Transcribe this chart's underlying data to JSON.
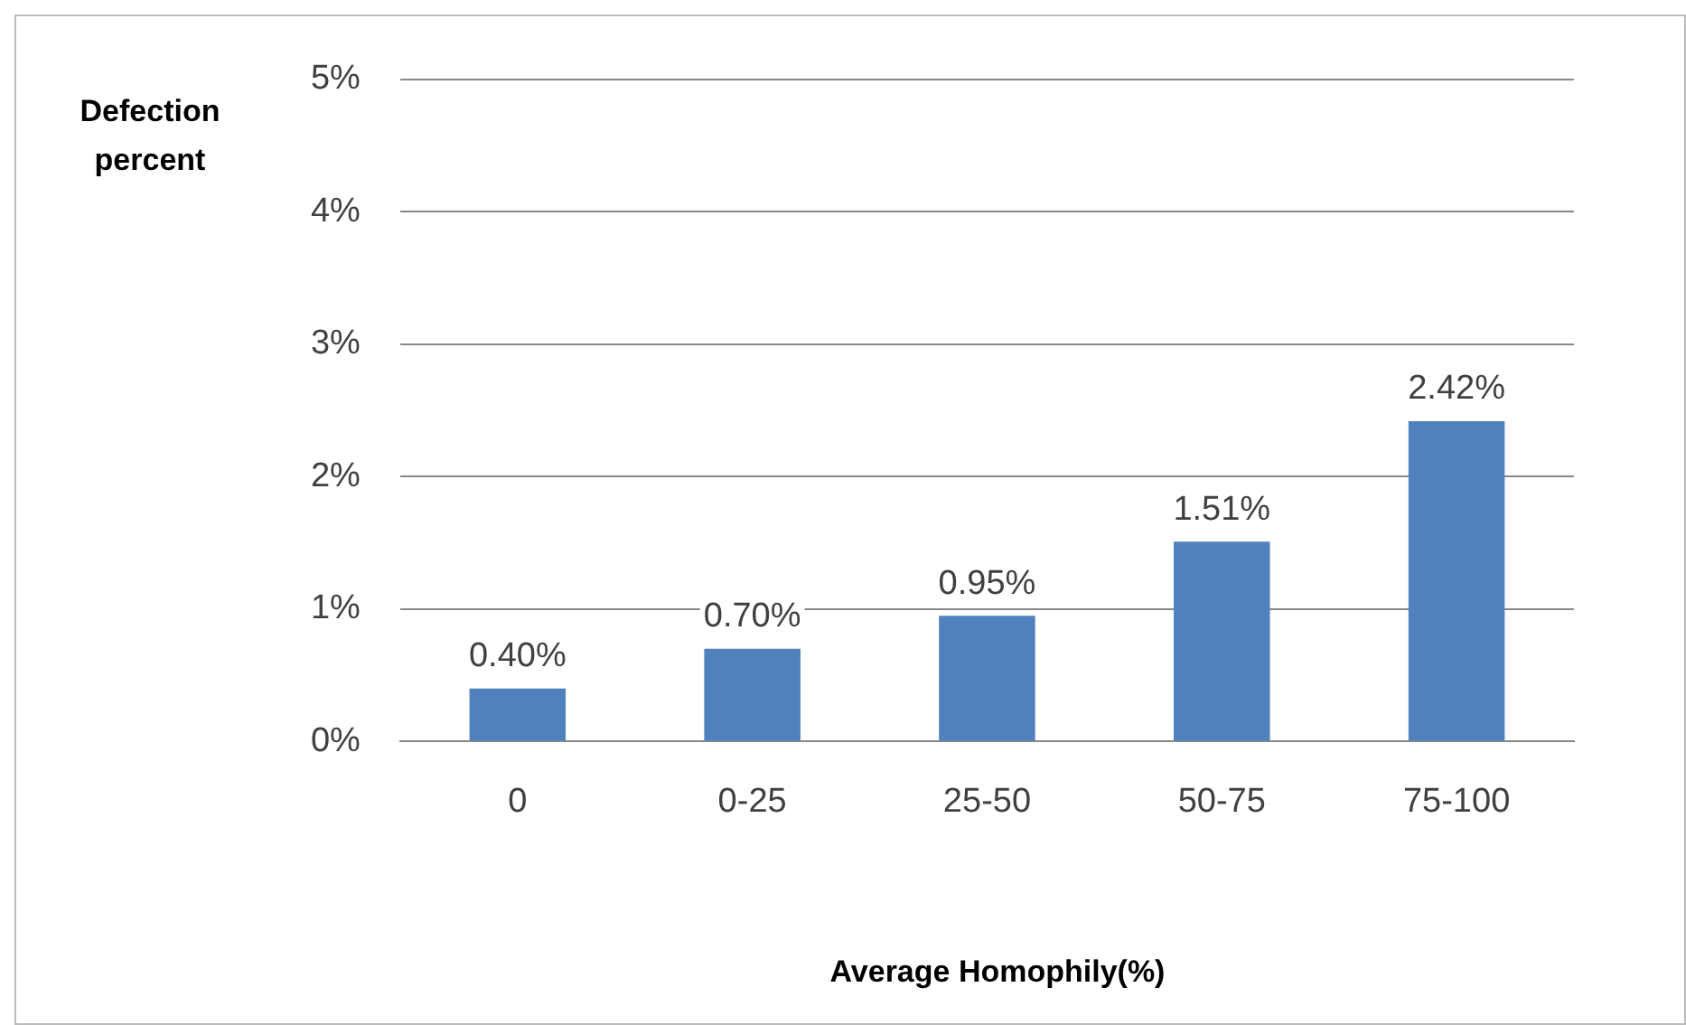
{
  "chart_data": {
    "type": "bar",
    "xlabel": "Average Homophily(%)",
    "ylabel": "Defection percent",
    "categories": [
      "0",
      "0-25",
      "25-50",
      "50-75",
      "75-100"
    ],
    "values": [
      0.4,
      0.7,
      0.95,
      1.51,
      2.42
    ],
    "value_labels": [
      "0.40%",
      "0.70%",
      "0.95%",
      "1.51%",
      "2.42%"
    ],
    "color": "#4f81bd",
    "ylim": [
      0,
      5
    ],
    "yticks": [
      {
        "value": 0,
        "label": "0%"
      },
      {
        "value": 1,
        "label": "1%"
      },
      {
        "value": 2,
        "label": "2%"
      },
      {
        "value": 3,
        "label": "3%"
      },
      {
        "value": 4,
        "label": "4%"
      },
      {
        "value": 5,
        "label": "5%"
      }
    ],
    "grid": "y",
    "legend": false
  }
}
